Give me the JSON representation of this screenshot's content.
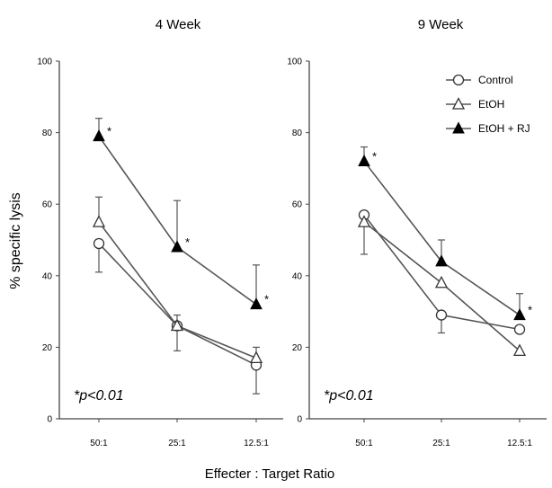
{
  "chart_data": {
    "type": "line",
    "shared_xlabel": "Effecter : Target   Ratio",
    "shared_ylabel": "% specific lysis",
    "significance_note": "*p<0.01",
    "star_symbol": "*",
    "categories": [
      "50:1",
      "25:1",
      "12.5:1"
    ],
    "ylim": [
      0,
      100
    ],
    "yticks": [
      "0",
      "20",
      "40",
      "60",
      "80",
      "100"
    ],
    "legend": {
      "placement": "top-right of second panel",
      "entries": [
        {
          "name": "Control",
          "marker": "open-circle"
        },
        {
          "name": "EtOH",
          "marker": "open-triangle"
        },
        {
          "name": "EtOH + RJ",
          "marker": "filled-triangle"
        }
      ]
    },
    "panels": [
      {
        "title": "4 Week",
        "series": [
          {
            "name": "Control",
            "marker": "open-circle",
            "values": [
              49,
              26,
              15
            ],
            "err_up": [
              0,
              0,
              0
            ],
            "err_down": [
              8,
              0,
              8
            ]
          },
          {
            "name": "EtOH",
            "marker": "open-triangle",
            "values": [
              55,
              26,
              17
            ],
            "err_up": [
              7,
              3,
              3
            ],
            "err_down": [
              0,
              7,
              0
            ]
          },
          {
            "name": "EtOH + RJ",
            "marker": "filled-triangle",
            "values": [
              79,
              48,
              32
            ],
            "err_up": [
              5,
              13,
              11
            ],
            "err_down": [
              0,
              0,
              0
            ]
          }
        ],
        "significant": [
          true,
          true,
          true
        ]
      },
      {
        "title": "9 Week",
        "series": [
          {
            "name": "Control",
            "marker": "open-circle",
            "values": [
              57,
              29,
              25
            ],
            "err_up": [
              0,
              0,
              0
            ],
            "err_down": [
              0,
              5,
              0
            ]
          },
          {
            "name": "EtOH",
            "marker": "open-triangle",
            "values": [
              55,
              38,
              19
            ],
            "err_up": [
              0,
              0,
              0
            ],
            "err_down": [
              9,
              0,
              0
            ]
          },
          {
            "name": "EtOH + RJ",
            "marker": "filled-triangle",
            "values": [
              72,
              44,
              29
            ],
            "err_up": [
              4,
              6,
              6
            ],
            "err_down": [
              0,
              0,
              0
            ]
          }
        ],
        "significant": [
          true,
          false,
          true
        ]
      }
    ]
  }
}
